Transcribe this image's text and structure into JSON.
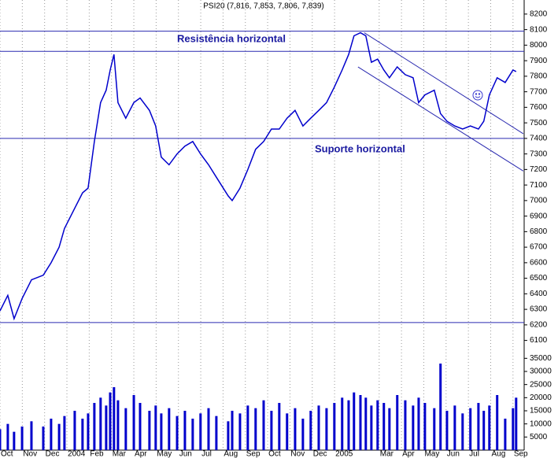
{
  "chart_data": [
    {
      "type": "line",
      "title": "PSI20 (7,816, 7,853, 7,806, 7,839)",
      "x": [
        0,
        0.35,
        0.63,
        0.99,
        1.41,
        1.94,
        2.29,
        2.65,
        2.89,
        3.35,
        3.7,
        3.95,
        4.23,
        4.51,
        4.76,
        4.94,
        5.11,
        5.29,
        5.64,
        6.0,
        6.28,
        6.7,
        6.98,
        7.23,
        7.58,
        7.94,
        8.29,
        8.64,
        8.99,
        9.35,
        9.7,
        10.23,
        10.41,
        10.76,
        11.11,
        11.46,
        11.82,
        12.17,
        12.52,
        12.87,
        13.23,
        13.58,
        13.93,
        14.29,
        14.64,
        14.99,
        15.34,
        15.63,
        15.87,
        16.16,
        16.4,
        16.65,
        16.93,
        17.21,
        17.46,
        17.81,
        18.17,
        18.52,
        18.77,
        19.05,
        19.47,
        19.75,
        20.04,
        20.39,
        20.74,
        21.09,
        21.45,
        21.69,
        21.94,
        22.29,
        22.65,
        23.0,
        23.14
      ],
      "series": [
        {
          "name": "PSI20",
          "color": "#0000cc",
          "values": [
            6290,
            6390,
            6240,
            6370,
            6490,
            6520,
            6600,
            6700,
            6820,
            6950,
            7050,
            7080,
            7380,
            7630,
            7710,
            7840,
            7940,
            7630,
            7530,
            7630,
            7660,
            7580,
            7480,
            7280,
            7230,
            7300,
            7350,
            7380,
            7300,
            7230,
            7150,
            7030,
            7000,
            7080,
            7200,
            7330,
            7380,
            7460,
            7460,
            7530,
            7580,
            7480,
            7530,
            7580,
            7630,
            7730,
            7840,
            7940,
            8060,
            8080,
            8060,
            7890,
            7910,
            7840,
            7790,
            7860,
            7810,
            7790,
            7630,
            7680,
            7710,
            7560,
            7510,
            7480,
            7460,
            7480,
            7460,
            7510,
            7680,
            7790,
            7760,
            7840,
            7830
          ]
        }
      ],
      "xlim": [
        0,
        23.5
      ],
      "xticks": [
        {
          "value": 0,
          "label": "Oct"
        },
        {
          "value": 1,
          "label": "Nov"
        },
        {
          "value": 2,
          "label": "Dec"
        },
        {
          "value": 3,
          "label": "2004"
        },
        {
          "value": 4,
          "label": "Feb"
        },
        {
          "value": 5,
          "label": "Mar"
        },
        {
          "value": 6,
          "label": "Apr"
        },
        {
          "value": 7,
          "label": "May"
        },
        {
          "value": 8,
          "label": "Jun"
        },
        {
          "value": 9,
          "label": "Jul"
        },
        {
          "value": 10,
          "label": "Aug"
        },
        {
          "value": 11,
          "label": "Sep"
        },
        {
          "value": 12,
          "label": "Oct"
        },
        {
          "value": 13,
          "label": "Nov"
        },
        {
          "value": 14,
          "label": "Dec"
        },
        {
          "value": 15,
          "label": "2005"
        },
        {
          "value": 17,
          "label": "Mar"
        },
        {
          "value": 18,
          "label": "Apr"
        },
        {
          "value": 19,
          "label": "May"
        },
        {
          "value": 20,
          "label": "Jun"
        },
        {
          "value": 21,
          "label": "Jul"
        },
        {
          "value": 22,
          "label": "Aug"
        },
        {
          "value": 23,
          "label": "Sep"
        }
      ],
      "ylim": [
        6060,
        8250
      ],
      "yticks": [
        6100,
        6200,
        6300,
        6400,
        6500,
        6600,
        6700,
        6800,
        6900,
        7000,
        7100,
        7200,
        7300,
        7400,
        7500,
        7600,
        7700,
        7800,
        7900,
        8000,
        8100,
        8200
      ],
      "reference_lines": [
        8090,
        7960,
        7400,
        6215
      ],
      "trend_lines": [
        {
          "x": [
            16.33,
            23.46
          ],
          "values": [
            8080,
            7430
          ]
        },
        {
          "x": [
            16.05,
            23.46
          ],
          "values": [
            7860,
            7190
          ]
        }
      ],
      "annotations": [
        "Resistência horizontal",
        "Suporte horizontal"
      ],
      "annotation_color": "#1a1aa0",
      "grid": true
    },
    {
      "type": "bar",
      "x": [
        0,
        0.35,
        0.63,
        0.99,
        1.41,
        1.94,
        2.29,
        2.65,
        2.89,
        3.35,
        3.7,
        3.95,
        4.23,
        4.51,
        4.76,
        4.94,
        5.11,
        5.29,
        5.64,
        6.0,
        6.28,
        6.7,
        6.98,
        7.23,
        7.58,
        7.94,
        8.29,
        8.64,
        8.99,
        9.35,
        9.7,
        10.23,
        10.41,
        10.76,
        11.11,
        11.46,
        11.82,
        12.17,
        12.52,
        12.87,
        13.23,
        13.58,
        13.93,
        14.29,
        14.64,
        14.99,
        15.34,
        15.63,
        15.87,
        16.16,
        16.4,
        16.65,
        16.93,
        17.21,
        17.46,
        17.81,
        18.17,
        18.52,
        18.77,
        19.05,
        19.47,
        19.75,
        20.04,
        20.39,
        20.74,
        21.09,
        21.45,
        21.69,
        21.94,
        22.29,
        22.65,
        23.0,
        23.14
      ],
      "values": [
        8000,
        10000,
        7000,
        9000,
        11000,
        9000,
        12000,
        10000,
        13000,
        15000,
        12000,
        14000,
        18000,
        20000,
        17000,
        22000,
        24000,
        19000,
        16000,
        21000,
        18000,
        15000,
        17000,
        14000,
        16000,
        13000,
        15000,
        12000,
        14000,
        16000,
        13000,
        11000,
        15000,
        14000,
        17000,
        16000,
        19000,
        15000,
        18000,
        14000,
        16000,
        12000,
        15000,
        17000,
        16000,
        18000,
        20000,
        19000,
        22000,
        21000,
        20000,
        17000,
        19000,
        18000,
        16000,
        21000,
        19000,
        17000,
        20000,
        18000,
        16000,
        33000,
        15000,
        17000,
        14000,
        16000,
        18000,
        15000,
        17000,
        21000,
        12000,
        16000,
        20000
      ],
      "color": "#0000cc",
      "xlim": [
        0,
        23.5
      ],
      "ylim": [
        0,
        36000
      ],
      "yticks": [
        5000,
        10000,
        15000,
        20000,
        25000,
        30000,
        35000
      ]
    }
  ]
}
